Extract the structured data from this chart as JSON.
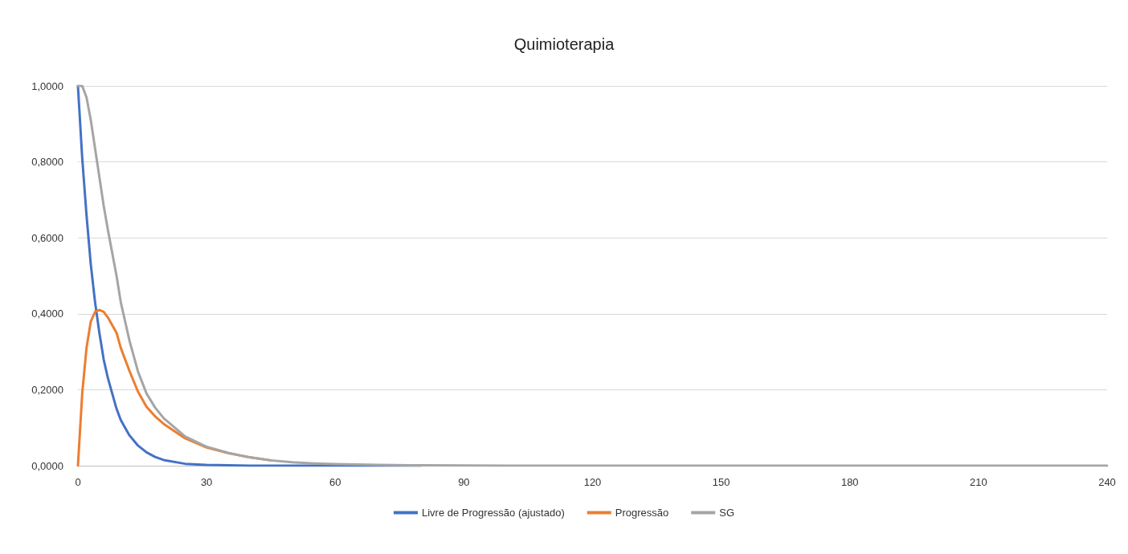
{
  "chart_data": {
    "type": "line",
    "title": "Quimioterapia",
    "x": [
      0,
      1,
      2,
      3,
      4,
      5,
      6,
      7,
      8,
      9,
      10,
      12,
      14,
      16,
      18,
      20,
      25,
      30,
      35,
      40,
      45,
      50,
      55,
      60,
      70,
      80,
      100,
      120,
      150,
      180,
      210,
      240
    ],
    "series": [
      {
        "name": "Livre de Progressão (ajustado)",
        "color": "#4472c4",
        "values": [
          1,
          0.81,
          0.66,
          0.53,
          0.43,
          0.35,
          0.28,
          0.23,
          0.19,
          0.15,
          0.12,
          0.08,
          0.053,
          0.035,
          0.023,
          0.015,
          0.005,
          0.002,
          0.001,
          0,
          0,
          0,
          0,
          0,
          0,
          0,
          null,
          null,
          null,
          null,
          null,
          null
        ]
      },
      {
        "name": "Progressão",
        "color": "#ed7d31",
        "values": [
          0,
          0.19,
          0.31,
          0.38,
          0.405,
          0.41,
          0.405,
          0.39,
          0.37,
          0.35,
          0.31,
          0.25,
          0.195,
          0.155,
          0.13,
          0.11,
          0.072,
          0.048,
          0.033,
          0.022,
          0.014,
          null,
          null,
          null,
          null,
          null,
          null,
          null,
          null,
          null,
          null,
          null
        ]
      },
      {
        "name": "SG",
        "color": "#a5a5a5",
        "values": [
          1,
          1,
          0.97,
          0.91,
          0.835,
          0.76,
          0.685,
          0.62,
          0.56,
          0.5,
          0.43,
          0.33,
          0.248,
          0.19,
          0.153,
          0.125,
          0.077,
          0.05,
          0.034,
          0.022,
          0.014,
          0.009,
          0.006,
          0.004,
          0.002,
          0.001,
          0,
          0,
          0,
          0,
          0,
          0
        ]
      }
    ],
    "xlim": [
      0,
      240
    ],
    "xticks": [
      0,
      30,
      60,
      90,
      120,
      150,
      180,
      210,
      240
    ],
    "ylim": [
      0,
      1
    ],
    "yticks": [
      {
        "value": 0,
        "label": "0,0000"
      },
      {
        "value": 0.2,
        "label": "0,2000"
      },
      {
        "value": 0.4,
        "label": "0,4000"
      },
      {
        "value": 0.6,
        "label": "0,6000"
      },
      {
        "value": 0.8,
        "label": "0,8000"
      },
      {
        "value": 1,
        "label": "1,0000"
      }
    ],
    "grid": "y",
    "legend": "bottom",
    "marker": "none",
    "line_style": "solid"
  }
}
